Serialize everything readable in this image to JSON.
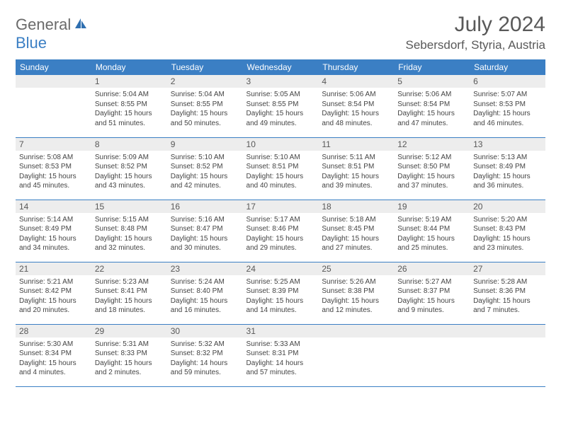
{
  "logo": {
    "word1": "General",
    "word2": "Blue"
  },
  "title": "July 2024",
  "location": "Sebersdorf, Styria, Austria",
  "colors": {
    "header_bg": "#3b7fc4",
    "header_text": "#ffffff",
    "daynum_bg": "#ededed",
    "divider": "#3b7fc4",
    "title_text": "#595959",
    "body_text": "#444444"
  },
  "weekdays": [
    "Sunday",
    "Monday",
    "Tuesday",
    "Wednesday",
    "Thursday",
    "Friday",
    "Saturday"
  ],
  "weeks": [
    [
      {
        "n": "",
        "sr": "",
        "ss": "",
        "dl": ""
      },
      {
        "n": "1",
        "sr": "Sunrise: 5:04 AM",
        "ss": "Sunset: 8:55 PM",
        "dl": "Daylight: 15 hours and 51 minutes."
      },
      {
        "n": "2",
        "sr": "Sunrise: 5:04 AM",
        "ss": "Sunset: 8:55 PM",
        "dl": "Daylight: 15 hours and 50 minutes."
      },
      {
        "n": "3",
        "sr": "Sunrise: 5:05 AM",
        "ss": "Sunset: 8:55 PM",
        "dl": "Daylight: 15 hours and 49 minutes."
      },
      {
        "n": "4",
        "sr": "Sunrise: 5:06 AM",
        "ss": "Sunset: 8:54 PM",
        "dl": "Daylight: 15 hours and 48 minutes."
      },
      {
        "n": "5",
        "sr": "Sunrise: 5:06 AM",
        "ss": "Sunset: 8:54 PM",
        "dl": "Daylight: 15 hours and 47 minutes."
      },
      {
        "n": "6",
        "sr": "Sunrise: 5:07 AM",
        "ss": "Sunset: 8:53 PM",
        "dl": "Daylight: 15 hours and 46 minutes."
      }
    ],
    [
      {
        "n": "7",
        "sr": "Sunrise: 5:08 AM",
        "ss": "Sunset: 8:53 PM",
        "dl": "Daylight: 15 hours and 45 minutes."
      },
      {
        "n": "8",
        "sr": "Sunrise: 5:09 AM",
        "ss": "Sunset: 8:52 PM",
        "dl": "Daylight: 15 hours and 43 minutes."
      },
      {
        "n": "9",
        "sr": "Sunrise: 5:10 AM",
        "ss": "Sunset: 8:52 PM",
        "dl": "Daylight: 15 hours and 42 minutes."
      },
      {
        "n": "10",
        "sr": "Sunrise: 5:10 AM",
        "ss": "Sunset: 8:51 PM",
        "dl": "Daylight: 15 hours and 40 minutes."
      },
      {
        "n": "11",
        "sr": "Sunrise: 5:11 AM",
        "ss": "Sunset: 8:51 PM",
        "dl": "Daylight: 15 hours and 39 minutes."
      },
      {
        "n": "12",
        "sr": "Sunrise: 5:12 AM",
        "ss": "Sunset: 8:50 PM",
        "dl": "Daylight: 15 hours and 37 minutes."
      },
      {
        "n": "13",
        "sr": "Sunrise: 5:13 AM",
        "ss": "Sunset: 8:49 PM",
        "dl": "Daylight: 15 hours and 36 minutes."
      }
    ],
    [
      {
        "n": "14",
        "sr": "Sunrise: 5:14 AM",
        "ss": "Sunset: 8:49 PM",
        "dl": "Daylight: 15 hours and 34 minutes."
      },
      {
        "n": "15",
        "sr": "Sunrise: 5:15 AM",
        "ss": "Sunset: 8:48 PM",
        "dl": "Daylight: 15 hours and 32 minutes."
      },
      {
        "n": "16",
        "sr": "Sunrise: 5:16 AM",
        "ss": "Sunset: 8:47 PM",
        "dl": "Daylight: 15 hours and 30 minutes."
      },
      {
        "n": "17",
        "sr": "Sunrise: 5:17 AM",
        "ss": "Sunset: 8:46 PM",
        "dl": "Daylight: 15 hours and 29 minutes."
      },
      {
        "n": "18",
        "sr": "Sunrise: 5:18 AM",
        "ss": "Sunset: 8:45 PM",
        "dl": "Daylight: 15 hours and 27 minutes."
      },
      {
        "n": "19",
        "sr": "Sunrise: 5:19 AM",
        "ss": "Sunset: 8:44 PM",
        "dl": "Daylight: 15 hours and 25 minutes."
      },
      {
        "n": "20",
        "sr": "Sunrise: 5:20 AM",
        "ss": "Sunset: 8:43 PM",
        "dl": "Daylight: 15 hours and 23 minutes."
      }
    ],
    [
      {
        "n": "21",
        "sr": "Sunrise: 5:21 AM",
        "ss": "Sunset: 8:42 PM",
        "dl": "Daylight: 15 hours and 20 minutes."
      },
      {
        "n": "22",
        "sr": "Sunrise: 5:23 AM",
        "ss": "Sunset: 8:41 PM",
        "dl": "Daylight: 15 hours and 18 minutes."
      },
      {
        "n": "23",
        "sr": "Sunrise: 5:24 AM",
        "ss": "Sunset: 8:40 PM",
        "dl": "Daylight: 15 hours and 16 minutes."
      },
      {
        "n": "24",
        "sr": "Sunrise: 5:25 AM",
        "ss": "Sunset: 8:39 PM",
        "dl": "Daylight: 15 hours and 14 minutes."
      },
      {
        "n": "25",
        "sr": "Sunrise: 5:26 AM",
        "ss": "Sunset: 8:38 PM",
        "dl": "Daylight: 15 hours and 12 minutes."
      },
      {
        "n": "26",
        "sr": "Sunrise: 5:27 AM",
        "ss": "Sunset: 8:37 PM",
        "dl": "Daylight: 15 hours and 9 minutes."
      },
      {
        "n": "27",
        "sr": "Sunrise: 5:28 AM",
        "ss": "Sunset: 8:36 PM",
        "dl": "Daylight: 15 hours and 7 minutes."
      }
    ],
    [
      {
        "n": "28",
        "sr": "Sunrise: 5:30 AM",
        "ss": "Sunset: 8:34 PM",
        "dl": "Daylight: 15 hours and 4 minutes."
      },
      {
        "n": "29",
        "sr": "Sunrise: 5:31 AM",
        "ss": "Sunset: 8:33 PM",
        "dl": "Daylight: 15 hours and 2 minutes."
      },
      {
        "n": "30",
        "sr": "Sunrise: 5:32 AM",
        "ss": "Sunset: 8:32 PM",
        "dl": "Daylight: 14 hours and 59 minutes."
      },
      {
        "n": "31",
        "sr": "Sunrise: 5:33 AM",
        "ss": "Sunset: 8:31 PM",
        "dl": "Daylight: 14 hours and 57 minutes."
      },
      {
        "n": "",
        "sr": "",
        "ss": "",
        "dl": ""
      },
      {
        "n": "",
        "sr": "",
        "ss": "",
        "dl": ""
      },
      {
        "n": "",
        "sr": "",
        "ss": "",
        "dl": ""
      }
    ]
  ]
}
